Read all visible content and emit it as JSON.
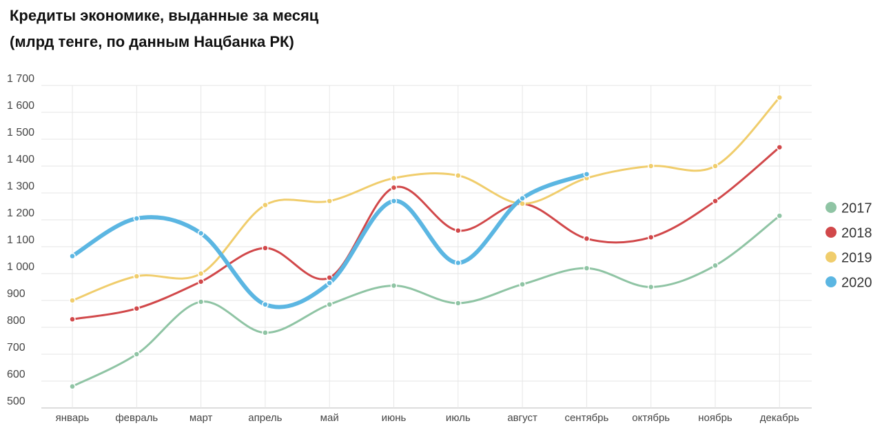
{
  "chart_data": {
    "type": "line",
    "title": "Кредиты экономике, выданные за месяц",
    "subtitle": "(млрд тенге, по данным Нацбанка РК)",
    "categories": [
      "январь",
      "февраль",
      "март",
      "апрель",
      "май",
      "июнь",
      "июль",
      "август",
      "сентябрь",
      "октябрь",
      "ноябрь",
      "декабрь"
    ],
    "series": [
      {
        "name": "2017",
        "color": "#8fc4a4",
        "values": [
          580,
          700,
          895,
          780,
          885,
          955,
          890,
          960,
          1020,
          950,
          1030,
          1215
        ]
      },
      {
        "name": "2018",
        "color": "#d1484a",
        "values": [
          830,
          870,
          970,
          1095,
          985,
          1320,
          1160,
          1260,
          1130,
          1135,
          1270,
          1470
        ]
      },
      {
        "name": "2019",
        "color": "#f0cd6c",
        "values": [
          900,
          990,
          1000,
          1255,
          1270,
          1355,
          1365,
          1260,
          1355,
          1400,
          1400,
          1655
        ]
      },
      {
        "name": "2020",
        "color": "#5bb6e2",
        "values": [
          1065,
          1205,
          1150,
          885,
          965,
          1270,
          1040,
          1280,
          1370,
          null,
          null,
          null
        ]
      }
    ],
    "ylim": [
      500,
      1700
    ],
    "yticks": [
      500,
      600,
      700,
      800,
      900,
      {
        "value": 1000,
        "label": "1 000"
      },
      {
        "value": 1100,
        "label": "1 100"
      },
      {
        "value": 1200,
        "label": "1 200"
      },
      {
        "value": 1300,
        "label": "1 300"
      },
      {
        "value": 1400,
        "label": "1 400"
      },
      {
        "value": 1500,
        "label": "1 500"
      },
      {
        "value": 1600,
        "label": "1 600"
      },
      {
        "value": 1700,
        "label": "1 700"
      }
    ],
    "grid": true,
    "legend": "right"
  }
}
